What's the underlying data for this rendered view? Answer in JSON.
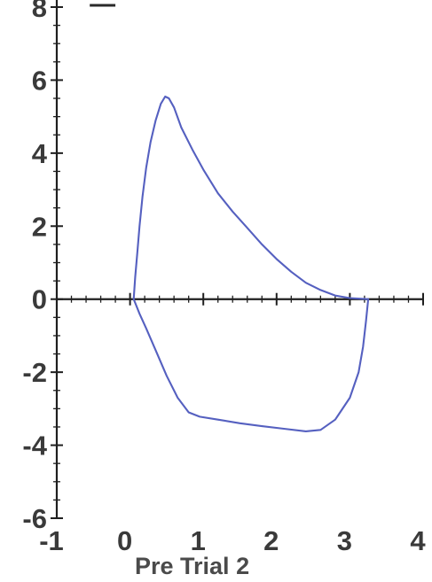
{
  "chart_data": {
    "type": "line",
    "title": "",
    "xlabel": "",
    "ylabel": "",
    "xlim": [
      -1,
      4
    ],
    "ylim": [
      -6,
      8
    ],
    "x_ticks": [
      "-1",
      "0",
      "1",
      "2",
      "3",
      "4"
    ],
    "y_ticks": [
      "-6",
      "-4",
      "-2",
      "0",
      "2",
      "4",
      "6"
    ],
    "caption": "Pre  Trial 2",
    "grid": false,
    "series": [
      {
        "line_color": "#5560c0",
        "points": [
          [
            0.05,
            0.0
          ],
          [
            0.07,
            0.6
          ],
          [
            0.1,
            1.3
          ],
          [
            0.13,
            2.0
          ],
          [
            0.17,
            2.8
          ],
          [
            0.22,
            3.6
          ],
          [
            0.28,
            4.3
          ],
          [
            0.35,
            4.9
          ],
          [
            0.42,
            5.35
          ],
          [
            0.48,
            5.55
          ],
          [
            0.53,
            5.5
          ],
          [
            0.6,
            5.25
          ],
          [
            0.7,
            4.7
          ],
          [
            0.85,
            4.1
          ],
          [
            1.0,
            3.55
          ],
          [
            1.2,
            2.9
          ],
          [
            1.4,
            2.4
          ],
          [
            1.6,
            1.95
          ],
          [
            1.8,
            1.5
          ],
          [
            2.0,
            1.1
          ],
          [
            2.2,
            0.75
          ],
          [
            2.4,
            0.45
          ],
          [
            2.6,
            0.25
          ],
          [
            2.8,
            0.1
          ],
          [
            3.0,
            0.03
          ],
          [
            3.25,
            0.0
          ],
          [
            3.22,
            -0.6
          ],
          [
            3.18,
            -1.3
          ],
          [
            3.12,
            -2.0
          ],
          [
            3.0,
            -2.7
          ],
          [
            2.8,
            -3.3
          ],
          [
            2.6,
            -3.58
          ],
          [
            2.4,
            -3.62
          ],
          [
            2.1,
            -3.55
          ],
          [
            1.8,
            -3.48
          ],
          [
            1.5,
            -3.4
          ],
          [
            1.2,
            -3.3
          ],
          [
            0.95,
            -3.22
          ],
          [
            0.8,
            -3.1
          ],
          [
            0.65,
            -2.7
          ],
          [
            0.5,
            -2.1
          ],
          [
            0.35,
            -1.4
          ],
          [
            0.22,
            -0.8
          ],
          [
            0.13,
            -0.4
          ],
          [
            0.08,
            -0.15
          ],
          [
            0.05,
            0.0
          ]
        ]
      }
    ],
    "top_mark": [
      [
        -0.55,
        8.05
      ],
      [
        -0.2,
        8.05
      ]
    ]
  }
}
